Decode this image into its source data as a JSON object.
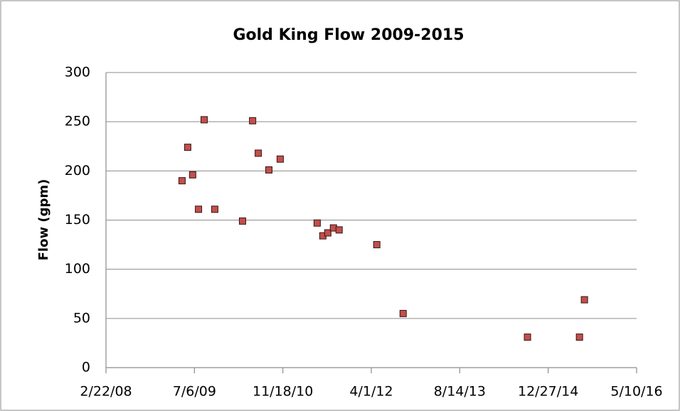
{
  "chart_data": {
    "type": "scatter",
    "title": "Gold King Flow 2009-2015",
    "y_label": "Flow (gpm)",
    "x": [
      39930,
      39962,
      39990,
      40023,
      40055,
      40115,
      40272,
      40329,
      40361,
      40421,
      40485,
      40694,
      40726,
      40754,
      40786,
      40818,
      41031,
      41180,
      41883,
      42177,
      42205
    ],
    "values": [
      190,
      224,
      196,
      161,
      252,
      161,
      149,
      251,
      218,
      201,
      212,
      147,
      134,
      137,
      142,
      140,
      125,
      55,
      31,
      31,
      69
    ],
    "color": "#c0504d",
    "xlim": [
      39500,
      42500
    ],
    "xticks": [
      {
        "value": 39500,
        "label": "2/22/08"
      },
      {
        "value": 40000,
        "label": "7/6/09"
      },
      {
        "value": 40500,
        "label": "11/18/10"
      },
      {
        "value": 41000,
        "label": "4/1/12"
      },
      {
        "value": 41500,
        "label": "8/14/13"
      },
      {
        "value": 42000,
        "label": "12/27/14"
      },
      {
        "value": 42500,
        "label": "5/10/16"
      }
    ],
    "ylim": [
      0,
      300
    ],
    "yticks": [
      0,
      50,
      100,
      150,
      200,
      250,
      300
    ],
    "grid": true
  }
}
